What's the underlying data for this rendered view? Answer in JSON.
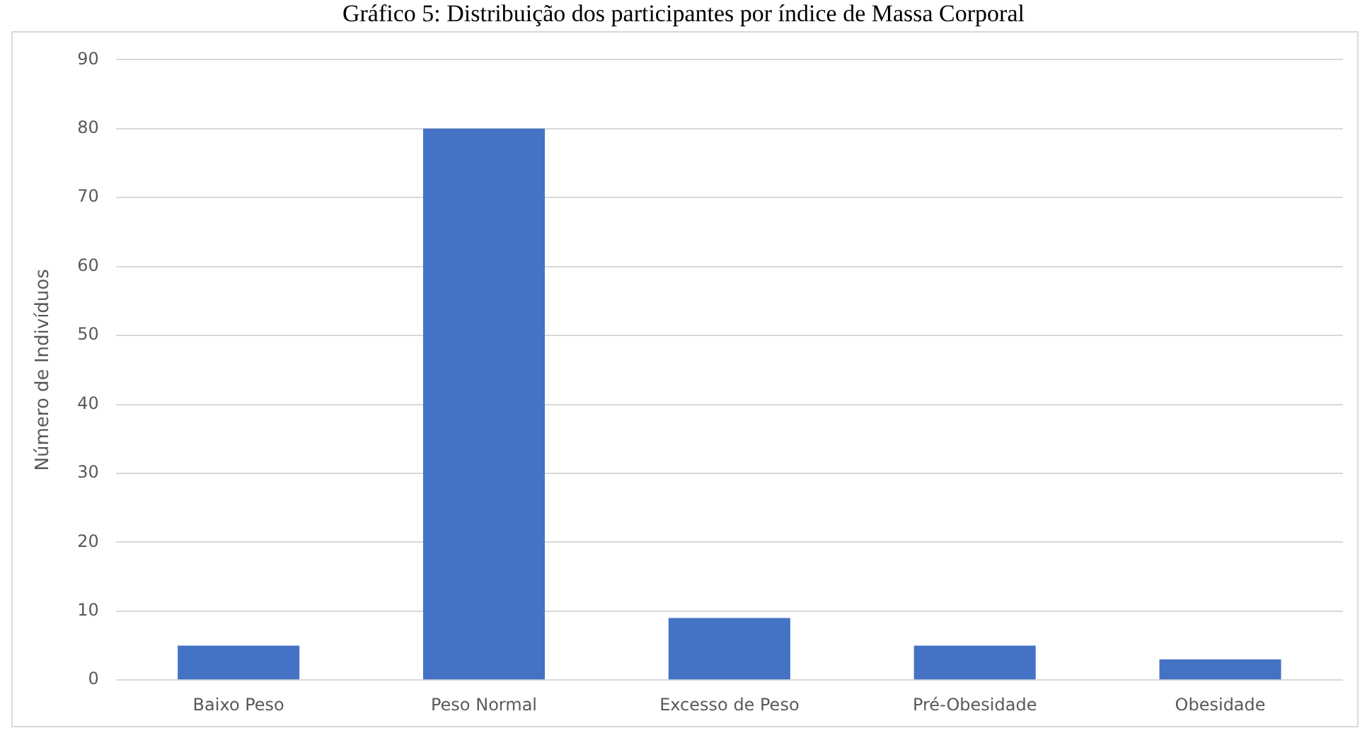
{
  "chart_data": {
    "type": "bar",
    "title": "Gráfico 5: Distribuição dos participantes por índice de Massa Corporal",
    "ylabel": "Número de Indivíduos",
    "categories": [
      "Baixo Peso",
      "Peso Normal",
      "Excesso de Peso",
      "Pré-Obesidade",
      "Obesidade"
    ],
    "values": [
      5,
      80,
      9,
      5,
      3
    ],
    "color": "#4472c4",
    "ylim": [
      0,
      90
    ],
    "yticks": [
      0,
      10,
      20,
      30,
      40,
      50,
      60,
      70,
      80,
      90
    ],
    "grid": "y",
    "legend": false
  }
}
